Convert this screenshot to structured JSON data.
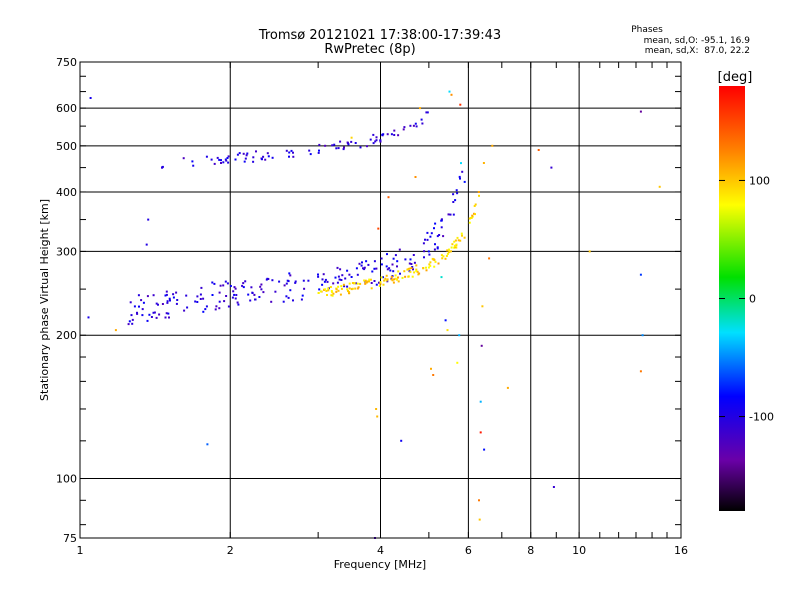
{
  "chart_data": {
    "type": "scatter",
    "title": "Tromsø 20121021 17:38:00-17:39:43",
    "subtitle": "RwPretec (8p)",
    "xlabel": "Frequency [MHz]",
    "ylabel": "Stationary phase Virtual Height [km]",
    "x_scale": "log",
    "y_scale": "log",
    "xlim": [
      1,
      16
    ],
    "ylim": [
      75,
      750
    ],
    "grid": true,
    "x_ticks": [
      1,
      2,
      4,
      6,
      8,
      10,
      16
    ],
    "y_ticks": [
      75,
      100,
      200,
      300,
      400,
      500,
      600,
      750
    ],
    "stats": {
      "heading": "Phases",
      "line_o": "mean, sd,O: -95.1, 16.9",
      "line_x": "mean, sd,X:  87.0, 22.2"
    },
    "colorbar": {
      "label": "[deg]",
      "range": [
        -180,
        180
      ],
      "ticks": [
        100,
        0,
        -100
      ]
    },
    "traces": [
      {
        "from": [
          1.45,
          1.65,
          2.0,
          2.5,
          3.0,
          3.4,
          3.8,
          4.1,
          4.4,
          4.7,
          5.0
        ],
        "heights": [
          455,
          462,
          470,
          480,
          493,
          502,
          512,
          522,
          535,
          555,
          585
        ],
        "phase": -105,
        "spread": 0.025,
        "count": 90
      },
      {
        "from": [
          1.25,
          1.4,
          1.6,
          1.9,
          2.3,
          2.8,
          3.3,
          3.8,
          4.3,
          4.8,
          5.2,
          5.5,
          5.7,
          5.85
        ],
        "heights": [
          226,
          230,
          236,
          242,
          248,
          254,
          262,
          270,
          282,
          300,
          325,
          355,
          390,
          430
        ],
        "phase": -102,
        "spread": 0.07,
        "count": 230
      },
      {
        "from": [
          3.0,
          3.4,
          3.8,
          4.2,
          4.6,
          5.0,
          5.4,
          5.8,
          6.0,
          6.2,
          6.35,
          6.45
        ],
        "heights": [
          245,
          250,
          256,
          263,
          271,
          281,
          295,
          318,
          340,
          370,
          410,
          470
        ],
        "phase": 95,
        "spread": 0.025,
        "count": 150
      }
    ],
    "scatter_points": [
      {
        "x": 1.04,
        "y": 218,
        "phase": -95
      },
      {
        "x": 1.05,
        "y": 630,
        "phase": -95
      },
      {
        "x": 1.18,
        "y": 205,
        "phase": 110
      },
      {
        "x": 1.36,
        "y": 310,
        "phase": -100
      },
      {
        "x": 1.37,
        "y": 350,
        "phase": -100
      },
      {
        "x": 1.8,
        "y": 118,
        "phase": -60
      },
      {
        "x": 3.5,
        "y": 520,
        "phase": 95
      },
      {
        "x": 3.9,
        "y": 75,
        "phase": -120
      },
      {
        "x": 3.92,
        "y": 140,
        "phase": 105
      },
      {
        "x": 3.94,
        "y": 135,
        "phase": 105
      },
      {
        "x": 3.96,
        "y": 335,
        "phase": 150
      },
      {
        "x": 4.15,
        "y": 390,
        "phase": 140
      },
      {
        "x": 4.4,
        "y": 120,
        "phase": -90
      },
      {
        "x": 4.7,
        "y": 430,
        "phase": 120
      },
      {
        "x": 4.8,
        "y": 600,
        "phase": 110
      },
      {
        "x": 5.05,
        "y": 170,
        "phase": 110
      },
      {
        "x": 5.1,
        "y": 165,
        "phase": 130
      },
      {
        "x": 5.3,
        "y": 265,
        "phase": -20
      },
      {
        "x": 5.4,
        "y": 215,
        "phase": -80
      },
      {
        "x": 5.45,
        "y": 205,
        "phase": 90
      },
      {
        "x": 5.5,
        "y": 650,
        "phase": -30
      },
      {
        "x": 5.55,
        "y": 640,
        "phase": 120
      },
      {
        "x": 5.7,
        "y": 175,
        "phase": 80
      },
      {
        "x": 5.75,
        "y": 200,
        "phase": -40
      },
      {
        "x": 5.78,
        "y": 610,
        "phase": 160
      },
      {
        "x": 5.8,
        "y": 460,
        "phase": -30
      },
      {
        "x": 5.9,
        "y": 420,
        "phase": -80
      },
      {
        "x": 6.3,
        "y": 90,
        "phase": 130
      },
      {
        "x": 6.32,
        "y": 82,
        "phase": 100
      },
      {
        "x": 6.35,
        "y": 125,
        "phase": 170
      },
      {
        "x": 6.35,
        "y": 145,
        "phase": -40
      },
      {
        "x": 6.38,
        "y": 190,
        "phase": -140
      },
      {
        "x": 6.4,
        "y": 230,
        "phase": 100
      },
      {
        "x": 6.45,
        "y": 115,
        "phase": -80
      },
      {
        "x": 6.6,
        "y": 290,
        "phase": 130
      },
      {
        "x": 6.7,
        "y": 500,
        "phase": 110
      },
      {
        "x": 7.2,
        "y": 155,
        "phase": 110
      },
      {
        "x": 8.3,
        "y": 490,
        "phase": 140
      },
      {
        "x": 8.8,
        "y": 450,
        "phase": -110
      },
      {
        "x": 8.9,
        "y": 96,
        "phase": -110
      },
      {
        "x": 10.5,
        "y": 300,
        "phase": 100
      },
      {
        "x": 13.3,
        "y": 590,
        "phase": -140
      },
      {
        "x": 13.3,
        "y": 268,
        "phase": -70
      },
      {
        "x": 13.3,
        "y": 168,
        "phase": 130
      },
      {
        "x": 13.4,
        "y": 200,
        "phase": -50
      },
      {
        "x": 14.5,
        "y": 410,
        "phase": 100
      }
    ]
  }
}
